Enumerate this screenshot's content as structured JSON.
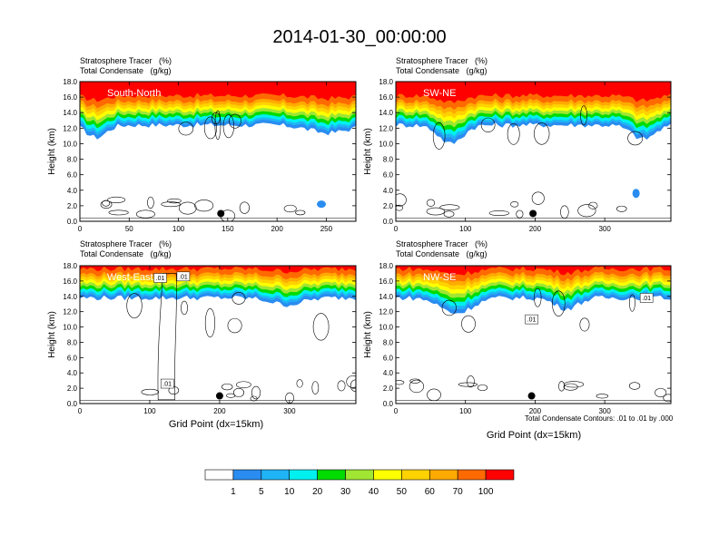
{
  "title": "2014-01-30_00:00:00",
  "panel_header": {
    "line1": "Stratosphere Tracer   (%)",
    "line2": "Total Condensate   (g/kg)"
  },
  "x_axis_title": "Grid Point (dx=15km)",
  "contour_note": "Total Condensate Contours: .01 to .01 by .000",
  "colors": {
    "levels": [
      "#ffffff",
      "#2a8cf0",
      "#1fb4f5",
      "#00f0f0",
      "#00e68a",
      "#00dc00",
      "#a0e632",
      "#ffff00",
      "#ffd200",
      "#ffaa00",
      "#ff6a00",
      "#ff2200",
      "#ff0000"
    ],
    "background": "#ffffff"
  },
  "chart_data": [
    {
      "type": "heatmap",
      "region_label": "South-North",
      "ylabel": "Height (km)",
      "ylim": [
        0,
        18
      ],
      "xlim": [
        0,
        280
      ],
      "xticks": [
        0,
        50,
        100,
        150,
        200,
        250
      ],
      "yticks": [
        "0.0",
        "2.0",
        "4.0",
        "6.0",
        "8.0",
        "10.0",
        "12.0",
        "14.0",
        "16.0",
        "18.0"
      ],
      "marker_x": 143,
      "marker_y": 1.0,
      "contour_labels": []
    },
    {
      "type": "heatmap",
      "region_label": "SW-NE",
      "ylabel": "Height (km)",
      "ylim": [
        0,
        18
      ],
      "xlim": [
        0,
        395
      ],
      "xticks": [
        0,
        100,
        200,
        300
      ],
      "yticks": [
        "0.0",
        "2.0",
        "4.0",
        "6.0",
        "8.0",
        "10.0",
        "12.0",
        "14.0",
        "16.0",
        "18.0"
      ],
      "marker_x": 197,
      "marker_y": 1.0,
      "contour_labels": []
    },
    {
      "type": "heatmap",
      "region_label": "West-East",
      "ylabel": "Height (km)",
      "ylim": [
        0,
        18
      ],
      "xlim": [
        0,
        395
      ],
      "xticks": [
        0,
        100,
        200,
        300
      ],
      "yticks": [
        "0.0",
        "2.0",
        "4.0",
        "6.0",
        "8.0",
        "10.0",
        "12.0",
        "14.0",
        "16.0",
        "18.0"
      ],
      "marker_x": 200,
      "marker_y": 1.0,
      "contour_labels": [
        ".01",
        ".01",
        ".01"
      ]
    },
    {
      "type": "heatmap",
      "region_label": "NW-SE",
      "ylabel": "Height (km)",
      "ylim": [
        0,
        18
      ],
      "xlim": [
        0,
        395
      ],
      "xticks": [
        0,
        100,
        200,
        300
      ],
      "yticks": [
        "0.0",
        "2.0",
        "4.0",
        "6.0",
        "8.0",
        "10.0",
        "12.0",
        "14.0",
        "16.0",
        "18.0"
      ],
      "marker_x": 195,
      "marker_y": 1.0,
      "contour_labels": [
        ".01",
        ".01"
      ]
    }
  ],
  "colorbar": {
    "labels": [
      "1",
      "5",
      "10",
      "20",
      "30",
      "40",
      "50",
      "60",
      "70",
      "100"
    ]
  }
}
